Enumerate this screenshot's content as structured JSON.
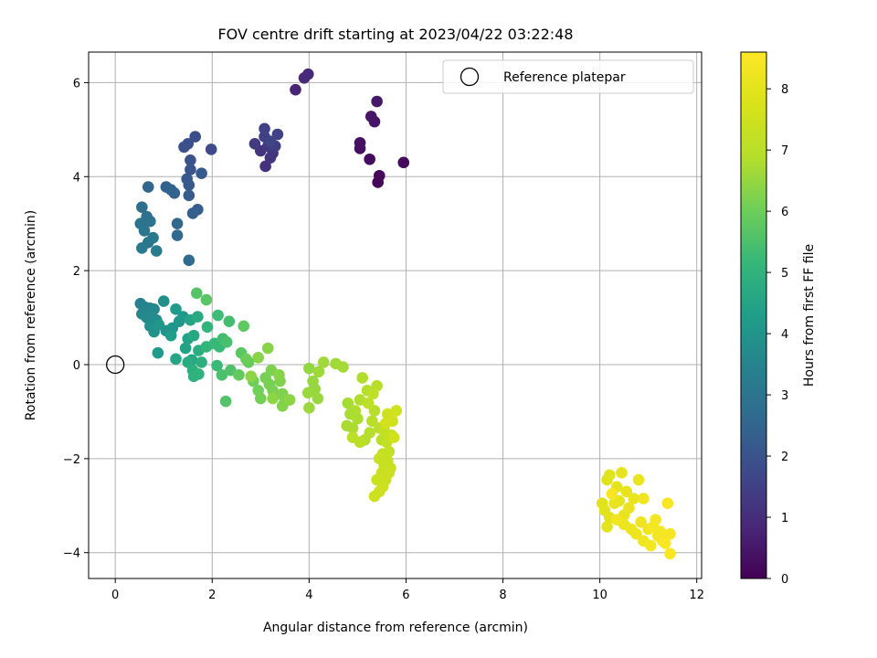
{
  "chart_data": {
    "type": "scatter",
    "title": "FOV centre drift starting at 2023/04/22 03:22:48",
    "xlabel": "Angular distance from reference (arcmin)",
    "ylabel": "Rotation from reference (arcmin)",
    "xlim": [
      -0.55,
      12.1
    ],
    "ylim": [
      -4.55,
      6.65
    ],
    "xticks": [
      0,
      2,
      4,
      6,
      8,
      10,
      12
    ],
    "yticks": [
      -4,
      -2,
      0,
      2,
      4,
      6
    ],
    "grid": true,
    "legend": {
      "placement": "top-right",
      "entries": [
        "Reference platepar"
      ]
    },
    "colorbar": {
      "label": "Hours from first FF file",
      "min": 0,
      "max": 8.6,
      "ticks": [
        0,
        1,
        2,
        3,
        4,
        5,
        6,
        7,
        8
      ],
      "colormap": "viridis"
    },
    "reference_point": {
      "x": 0,
      "y": 0
    },
    "series": [
      {
        "points": [
          [
            5.42,
            3.88,
            0.1
          ],
          [
            5.45,
            4.02,
            0.15
          ],
          [
            5.95,
            4.3,
            0.2
          ],
          [
            5.25,
            4.37,
            0.25
          ],
          [
            5.05,
            4.6,
            0.3
          ],
          [
            5.05,
            4.72,
            0.35
          ],
          [
            5.35,
            5.17,
            0.4
          ],
          [
            5.28,
            5.28,
            0.45
          ],
          [
            5.4,
            5.6,
            0.5
          ],
          [
            3.72,
            5.85,
            0.8
          ],
          [
            3.9,
            6.1,
            0.9
          ],
          [
            3.98,
            6.18,
            0.95
          ],
          [
            3.1,
            4.22,
            1.1
          ],
          [
            3.0,
            4.55,
            1.15
          ],
          [
            3.2,
            4.4,
            1.2
          ],
          [
            3.25,
            4.5,
            1.25
          ],
          [
            3.15,
            4.65,
            1.3
          ],
          [
            2.88,
            4.7,
            1.35
          ],
          [
            3.3,
            4.65,
            1.4
          ],
          [
            3.08,
            4.85,
            1.45
          ],
          [
            3.35,
            4.9,
            1.5
          ],
          [
            3.08,
            5.02,
            1.55
          ],
          [
            3.2,
            4.75,
            1.6
          ],
          [
            1.98,
            4.58,
            1.75
          ],
          [
            1.65,
            4.85,
            1.85
          ],
          [
            1.5,
            4.7,
            1.9
          ],
          [
            1.42,
            4.63,
            1.95
          ],
          [
            1.55,
            4.35,
            2.0
          ],
          [
            1.55,
            4.15,
            2.05
          ],
          [
            1.48,
            3.95,
            2.1
          ],
          [
            1.52,
            3.82,
            2.15
          ],
          [
            1.78,
            4.07,
            2.2
          ],
          [
            1.52,
            3.6,
            2.25
          ],
          [
            1.7,
            3.3,
            2.3
          ],
          [
            1.6,
            3.22,
            2.35
          ],
          [
            1.22,
            3.65,
            2.4
          ],
          [
            1.05,
            3.78,
            2.45
          ],
          [
            1.15,
            3.72,
            2.5
          ],
          [
            0.68,
            3.78,
            2.55
          ],
          [
            1.28,
            3.0,
            2.6
          ],
          [
            1.28,
            2.75,
            2.65
          ],
          [
            1.52,
            2.22,
            2.7
          ],
          [
            0.55,
            3.35,
            2.8
          ],
          [
            0.65,
            3.15,
            2.85
          ],
          [
            0.72,
            3.05,
            2.9
          ],
          [
            0.52,
            3.0,
            2.95
          ],
          [
            0.6,
            2.85,
            3.0
          ],
          [
            0.68,
            2.6,
            3.05
          ],
          [
            0.78,
            2.7,
            3.1
          ],
          [
            0.55,
            2.48,
            3.15
          ],
          [
            0.85,
            2.42,
            3.2
          ],
          [
            0.52,
            1.3,
            3.4
          ],
          [
            0.62,
            1.22,
            3.45
          ],
          [
            0.72,
            1.2,
            3.5
          ],
          [
            0.8,
            1.18,
            3.55
          ],
          [
            0.55,
            1.08,
            3.6
          ],
          [
            0.65,
            1.0,
            3.65
          ],
          [
            0.75,
            1.05,
            3.7
          ],
          [
            0.85,
            0.95,
            3.75
          ],
          [
            1.0,
            1.35,
            3.8
          ],
          [
            0.72,
            0.82,
            3.85
          ],
          [
            0.8,
            0.7,
            3.9
          ],
          [
            1.05,
            0.72,
            3.95
          ],
          [
            1.18,
            0.78,
            4.0
          ],
          [
            1.32,
            0.92,
            4.05
          ],
          [
            0.9,
            0.85,
            4.1
          ],
          [
            1.4,
            1.02,
            4.15
          ],
          [
            0.88,
            0.25,
            4.2
          ],
          [
            1.25,
            1.18,
            4.25
          ],
          [
            1.15,
            0.62,
            4.3
          ],
          [
            1.45,
            0.35,
            4.4
          ],
          [
            1.5,
            0.55,
            4.45
          ],
          [
            1.55,
            0.95,
            4.5
          ],
          [
            1.25,
            0.12,
            4.55
          ],
          [
            1.58,
            0.1,
            4.6
          ],
          [
            1.62,
            0.62,
            4.65
          ],
          [
            1.7,
            1.02,
            4.7
          ],
          [
            1.5,
            0.05,
            4.75
          ],
          [
            1.72,
            0.3,
            4.8
          ],
          [
            1.78,
            0.05,
            4.85
          ],
          [
            1.6,
            -0.12,
            4.9
          ],
          [
            1.62,
            -0.25,
            4.95
          ],
          [
            1.72,
            -0.2,
            5.0
          ],
          [
            1.9,
            0.8,
            5.05
          ],
          [
            1.88,
            0.38,
            5.1
          ],
          [
            2.05,
            0.45,
            5.15
          ],
          [
            2.15,
            0.38,
            5.2
          ],
          [
            2.1,
            -0.02,
            5.25
          ],
          [
            2.12,
            1.05,
            5.3
          ],
          [
            2.22,
            0.55,
            5.35
          ],
          [
            2.35,
            0.92,
            5.4
          ],
          [
            2.3,
            0.48,
            5.45
          ],
          [
            2.2,
            -0.22,
            5.5
          ],
          [
            2.38,
            -0.12,
            5.55
          ],
          [
            2.28,
            -0.78,
            5.6
          ],
          [
            1.68,
            1.52,
            5.65
          ],
          [
            1.88,
            1.38,
            5.7
          ],
          [
            2.6,
            0.25,
            5.75
          ],
          [
            2.65,
            0.82,
            5.8
          ],
          [
            2.55,
            -0.22,
            5.85
          ],
          [
            2.75,
            0.05,
            5.9
          ],
          [
            2.7,
            0.12,
            5.95
          ],
          [
            2.85,
            -0.35,
            6.0
          ],
          [
            2.95,
            -0.55,
            6.05
          ],
          [
            3.0,
            -0.72,
            6.1
          ],
          [
            3.1,
            -0.28,
            6.12
          ],
          [
            3.18,
            -0.42,
            6.14
          ],
          [
            3.25,
            -0.55,
            6.16
          ],
          [
            3.3,
            -0.65,
            6.18
          ],
          [
            3.22,
            -0.12,
            6.2
          ],
          [
            3.4,
            -0.35,
            6.22
          ],
          [
            3.45,
            -0.62,
            6.24
          ],
          [
            3.5,
            -0.78,
            6.26
          ],
          [
            3.45,
            -0.88,
            6.28
          ],
          [
            3.38,
            -0.22,
            6.3
          ],
          [
            3.15,
            0.35,
            6.32
          ],
          [
            2.95,
            0.15,
            6.34
          ],
          [
            3.6,
            -0.75,
            6.36
          ],
          [
            3.25,
            -0.72,
            6.38
          ],
          [
            2.8,
            -0.25,
            6.4
          ],
          [
            4.0,
            -0.08,
            6.45
          ],
          [
            4.08,
            -0.35,
            6.5
          ],
          [
            4.12,
            -0.52,
            6.52
          ],
          [
            4.18,
            -0.72,
            6.54
          ],
          [
            3.98,
            -0.6,
            6.56
          ],
          [
            4.0,
            -0.92,
            6.58
          ],
          [
            4.2,
            -0.15,
            6.6
          ],
          [
            4.3,
            0.05,
            6.62
          ],
          [
            4.55,
            0.02,
            6.64
          ],
          [
            4.7,
            -0.05,
            6.66
          ],
          [
            4.8,
            -0.82,
            6.7
          ],
          [
            4.85,
            -1.05,
            6.72
          ],
          [
            4.78,
            -1.3,
            6.74
          ],
          [
            4.9,
            -1.35,
            6.76
          ],
          [
            5.0,
            -1.15,
            6.78
          ],
          [
            4.95,
            -0.98,
            6.8
          ],
          [
            5.05,
            -0.75,
            6.82
          ],
          [
            5.1,
            -0.28,
            6.84
          ],
          [
            5.2,
            -0.55,
            6.86
          ],
          [
            5.15,
            -1.6,
            6.88
          ],
          [
            5.25,
            -1.45,
            6.9
          ],
          [
            5.3,
            -1.2,
            6.92
          ],
          [
            5.35,
            -0.98,
            6.94
          ],
          [
            5.4,
            -0.45,
            6.96
          ],
          [
            5.45,
            -1.35,
            6.98
          ],
          [
            5.5,
            -1.6,
            7.0
          ],
          [
            5.05,
            -1.65,
            7.02
          ],
          [
            4.9,
            -1.55,
            7.04
          ],
          [
            5.22,
            -0.82,
            7.06
          ],
          [
            5.32,
            -0.62,
            7.08
          ],
          [
            5.55,
            -1.4,
            7.15
          ],
          [
            5.6,
            -1.65,
            7.2
          ],
          [
            5.65,
            -1.85,
            7.22
          ],
          [
            5.7,
            -1.5,
            7.24
          ],
          [
            5.52,
            -1.9,
            7.26
          ],
          [
            5.62,
            -2.05,
            7.28
          ],
          [
            5.55,
            -2.15,
            7.3
          ],
          [
            5.68,
            -2.2,
            7.32
          ],
          [
            5.45,
            -2.0,
            7.34
          ],
          [
            5.5,
            -2.3,
            7.36
          ],
          [
            5.58,
            -2.45,
            7.38
          ],
          [
            5.65,
            -2.3,
            7.4
          ],
          [
            5.4,
            -2.45,
            7.42
          ],
          [
            5.45,
            -2.7,
            7.44
          ],
          [
            5.35,
            -2.8,
            7.46
          ],
          [
            5.52,
            -2.6,
            7.48
          ],
          [
            5.62,
            -1.05,
            7.5
          ],
          [
            5.72,
            -1.2,
            7.52
          ],
          [
            5.8,
            -0.98,
            7.54
          ],
          [
            5.75,
            -1.55,
            7.56
          ],
          [
            5.58,
            -1.25,
            7.58
          ],
          [
            10.05,
            -2.95,
            7.9
          ],
          [
            10.15,
            -2.45,
            7.92
          ],
          [
            10.2,
            -2.35,
            7.94
          ],
          [
            10.1,
            -3.1,
            7.96
          ],
          [
            10.2,
            -3.25,
            7.98
          ],
          [
            10.15,
            -3.45,
            8.0
          ],
          [
            10.35,
            -2.6,
            8.02
          ],
          [
            10.45,
            -2.3,
            8.04
          ],
          [
            10.4,
            -2.9,
            8.06
          ],
          [
            10.5,
            -3.2,
            8.08
          ],
          [
            10.55,
            -2.7,
            8.1
          ],
          [
            10.3,
            -2.95,
            8.12
          ],
          [
            10.6,
            -3.05,
            8.14
          ],
          [
            10.7,
            -2.85,
            8.16
          ],
          [
            10.8,
            -2.45,
            8.18
          ],
          [
            10.5,
            -3.4,
            8.2
          ],
          [
            10.65,
            -3.5,
            8.22
          ],
          [
            10.75,
            -3.6,
            8.24
          ],
          [
            10.85,
            -3.35,
            8.26
          ],
          [
            10.9,
            -2.85,
            8.28
          ],
          [
            10.9,
            -3.75,
            8.3
          ],
          [
            11.0,
            -3.5,
            8.32
          ],
          [
            11.05,
            -3.85,
            8.34
          ],
          [
            11.15,
            -3.3,
            8.36
          ],
          [
            11.2,
            -3.65,
            8.38
          ],
          [
            11.25,
            -3.55,
            8.4
          ],
          [
            11.3,
            -3.75,
            8.42
          ],
          [
            11.4,
            -2.95,
            8.44
          ],
          [
            11.45,
            -3.6,
            8.46
          ],
          [
            11.45,
            -4.02,
            8.48
          ],
          [
            11.35,
            -3.8,
            8.5
          ],
          [
            10.25,
            -2.75,
            8.45
          ],
          [
            10.35,
            -3.3,
            8.35
          ],
          [
            11.1,
            -3.45,
            8.4
          ]
        ]
      }
    ]
  }
}
